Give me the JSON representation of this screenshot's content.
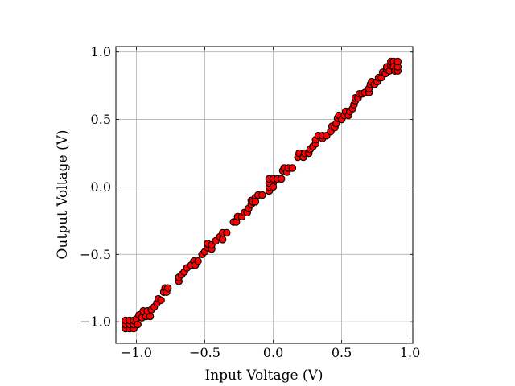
{
  "chart_data": {
    "type": "scatter",
    "title": "",
    "xlabel": "Input Voltage (V)",
    "ylabel": "Output Voltage (V)",
    "xlim": [
      -1.15,
      1.02
    ],
    "ylim": [
      -1.16,
      1.04
    ],
    "xticks": [
      -1.0,
      -0.5,
      0.0,
      0.5,
      1.0
    ],
    "xtick_labels": [
      "−1.0",
      "−0.5",
      "0.0",
      "0.5",
      "1.0"
    ],
    "yticks": [
      -1.0,
      -0.5,
      0.0,
      0.5,
      1.0
    ],
    "ytick_labels": [
      "−1.0",
      "−0.5",
      "0.0",
      "0.5",
      "1.0"
    ],
    "grid": true,
    "marker_color": "#ff0000",
    "marker_edge_color": "#000000",
    "points": [
      [
        -1.08,
        -1.05
      ],
      [
        -1.08,
        -1.02
      ],
      [
        -1.08,
        -0.99
      ],
      [
        -1.05,
        -1.05
      ],
      [
        -1.05,
        -1.02
      ],
      [
        -1.05,
        -0.99
      ],
      [
        -1.02,
        -1.05
      ],
      [
        -1.02,
        -1.02
      ],
      [
        -1.02,
        -0.99
      ],
      [
        -1.0,
        -0.98
      ],
      [
        -0.99,
        -1.02
      ],
      [
        -0.98,
        -0.95
      ],
      [
        -0.96,
        -0.97
      ],
      [
        -0.95,
        -0.92
      ],
      [
        -0.93,
        -0.96
      ],
      [
        -0.92,
        -0.92
      ],
      [
        -0.9,
        -0.96
      ],
      [
        -0.89,
        -0.91
      ],
      [
        -0.87,
        -0.89
      ],
      [
        -0.85,
        -0.86
      ],
      [
        -0.84,
        -0.83
      ],
      [
        -0.82,
        -0.84
      ],
      [
        -0.8,
        -0.78
      ],
      [
        -0.79,
        -0.75
      ],
      [
        -0.78,
        -0.78
      ],
      [
        -0.77,
        -0.75
      ],
      [
        -0.69,
        -0.7
      ],
      [
        -0.69,
        -0.67
      ],
      [
        -0.67,
        -0.65
      ],
      [
        -0.65,
        -0.63
      ],
      [
        -0.63,
        -0.6
      ],
      [
        -0.6,
        -0.58
      ],
      [
        -0.58,
        -0.55
      ],
      [
        -0.57,
        -0.58
      ],
      [
        -0.55,
        -0.55
      ],
      [
        -0.52,
        -0.5
      ],
      [
        -0.5,
        -0.48
      ],
      [
        -0.48,
        -0.45
      ],
      [
        -0.48,
        -0.42
      ],
      [
        -0.45,
        -0.46
      ],
      [
        -0.45,
        -0.43
      ],
      [
        -0.42,
        -0.4
      ],
      [
        -0.39,
        -0.37
      ],
      [
        -0.37,
        -0.39
      ],
      [
        -0.37,
        -0.34
      ],
      [
        -0.34,
        -0.34
      ],
      [
        -0.29,
        -0.26
      ],
      [
        -0.27,
        -0.26
      ],
      [
        -0.26,
        -0.22
      ],
      [
        -0.23,
        -0.22
      ],
      [
        -0.21,
        -0.19
      ],
      [
        -0.19,
        -0.19
      ],
      [
        -0.18,
        -0.16
      ],
      [
        -0.16,
        -0.13
      ],
      [
        -0.16,
        -0.1
      ],
      [
        -0.13,
        -0.08
      ],
      [
        -0.15,
        -0.11
      ],
      [
        -0.13,
        -0.11
      ],
      [
        -0.11,
        -0.06
      ],
      [
        -0.08,
        -0.06
      ],
      [
        -0.03,
        -0.03
      ],
      [
        -0.03,
        0.0
      ],
      [
        -0.03,
        0.03
      ],
      [
        -0.03,
        0.06
      ],
      [
        0.0,
        0.03
      ],
      [
        0.0,
        0.0
      ],
      [
        0.0,
        0.06
      ],
      [
        0.03,
        0.06
      ],
      [
        0.06,
        0.06
      ],
      [
        0.07,
        0.12
      ],
      [
        0.08,
        0.14
      ],
      [
        0.1,
        0.11
      ],
      [
        0.11,
        0.14
      ],
      [
        0.14,
        0.14
      ],
      [
        0.18,
        0.22
      ],
      [
        0.19,
        0.25
      ],
      [
        0.22,
        0.22
      ],
      [
        0.23,
        0.25
      ],
      [
        0.26,
        0.25
      ],
      [
        0.27,
        0.28
      ],
      [
        0.29,
        0.3
      ],
      [
        0.31,
        0.32
      ],
      [
        0.31,
        0.35
      ],
      [
        0.33,
        0.38
      ],
      [
        0.33,
        0.38
      ],
      [
        0.36,
        0.36
      ],
      [
        0.36,
        0.38
      ],
      [
        0.39,
        0.38
      ],
      [
        0.42,
        0.41
      ],
      [
        0.43,
        0.45
      ],
      [
        0.45,
        0.44
      ],
      [
        0.46,
        0.47
      ],
      [
        0.47,
        0.51
      ],
      [
        0.48,
        0.53
      ],
      [
        0.5,
        0.5
      ],
      [
        0.52,
        0.53
      ],
      [
        0.53,
        0.56
      ],
      [
        0.55,
        0.53
      ],
      [
        0.56,
        0.56
      ],
      [
        0.58,
        0.58
      ],
      [
        0.59,
        0.61
      ],
      [
        0.6,
        0.64
      ],
      [
        0.6,
        0.66
      ],
      [
        0.62,
        0.66
      ],
      [
        0.63,
        0.69
      ],
      [
        0.65,
        0.69
      ],
      [
        0.67,
        0.7
      ],
      [
        0.7,
        0.7
      ],
      [
        0.7,
        0.73
      ],
      [
        0.71,
        0.76
      ],
      [
        0.72,
        0.78
      ],
      [
        0.74,
        0.76
      ],
      [
        0.76,
        0.78
      ],
      [
        0.77,
        0.81
      ],
      [
        0.79,
        0.81
      ],
      [
        0.8,
        0.85
      ],
      [
        0.82,
        0.84
      ],
      [
        0.83,
        0.87
      ],
      [
        0.83,
        0.89
      ],
      [
        0.85,
        0.86
      ],
      [
        0.86,
        0.9
      ],
      [
        0.86,
        0.93
      ],
      [
        0.88,
        0.93
      ],
      [
        0.88,
        0.89
      ],
      [
        0.89,
        0.86
      ],
      [
        0.91,
        0.86
      ],
      [
        0.91,
        0.89
      ],
      [
        0.91,
        0.93
      ]
    ]
  }
}
